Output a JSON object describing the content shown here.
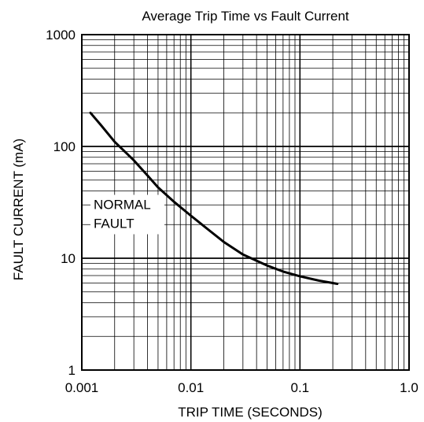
{
  "chart_data": {
    "type": "line",
    "title": "Average Trip Time vs Fault Current",
    "xlabel": "TRIP TIME (SECONDS)",
    "ylabel": "FAULT CURRENT (mA)",
    "xscale": "log",
    "yscale": "log",
    "xlim": [
      0.001,
      1.0
    ],
    "ylim": [
      1,
      1000
    ],
    "xticks": [
      "0.001",
      "0.01",
      "0.1",
      "1.0"
    ],
    "yticks": [
      "1",
      "10",
      "100",
      "1000"
    ],
    "grid": true,
    "annotation": {
      "line1": "NORMAL",
      "line2": "FAULT",
      "x": 0.0012,
      "y": 25
    },
    "series": [
      {
        "color": "#000000",
        "x": [
          0.0012,
          0.0015,
          0.002,
          0.003,
          0.004,
          0.005,
          0.007,
          0.01,
          0.015,
          0.02,
          0.03,
          0.05,
          0.07,
          0.1,
          0.15,
          0.22
        ],
        "y": [
          200,
          155,
          110,
          75,
          55,
          43,
          32,
          24,
          17.5,
          14,
          10.8,
          8.6,
          7.6,
          6.9,
          6.3,
          5.9
        ]
      }
    ]
  }
}
